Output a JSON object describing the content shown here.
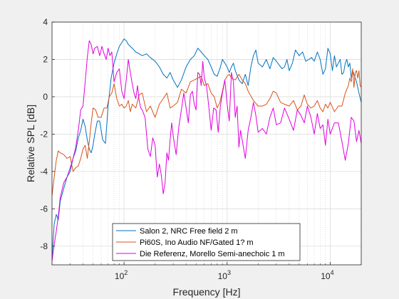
{
  "chart_data": {
    "type": "line",
    "title": "",
    "xlabel": "Frequency [Hz]",
    "ylabel": "Relative SPL [dB]",
    "xscale": "log",
    "xlim": [
      20,
      20000
    ],
    "ylim": [
      -9,
      4
    ],
    "grid": true,
    "legend_position": "bottom-center",
    "x_ticks": [
      {
        "value": 100,
        "base": "10",
        "exp": "2"
      },
      {
        "value": 1000,
        "base": "10",
        "exp": "3"
      },
      {
        "value": 10000,
        "base": "10",
        "exp": "4"
      }
    ],
    "y_ticks": [
      {
        "value": -8,
        "label": "-8"
      },
      {
        "value": -6,
        "label": "-6"
      },
      {
        "value": -4,
        "label": "-4"
      },
      {
        "value": -2,
        "label": "-2"
      },
      {
        "value": 0,
        "label": "0"
      },
      {
        "value": 2,
        "label": "2"
      },
      {
        "value": 4,
        "label": "4"
      }
    ],
    "series": [
      {
        "name": "Salon 2, NRC Free field 2 m",
        "color": "#0072BD",
        "x": [
          20,
          21,
          22,
          23,
          24,
          26,
          28,
          30,
          32,
          34,
          36,
          38,
          40,
          42,
          44,
          46,
          48,
          50,
          52,
          55,
          58,
          62,
          66,
          70,
          75,
          80,
          85,
          90,
          95,
          100,
          105,
          110,
          120,
          130,
          140,
          150,
          165,
          180,
          200,
          220,
          240,
          260,
          280,
          300,
          330,
          360,
          400,
          440,
          480,
          520,
          560,
          600,
          650,
          700,
          750,
          800,
          850,
          900,
          950,
          1000,
          1050,
          1100,
          1150,
          1200,
          1300,
          1400,
          1500,
          1600,
          1700,
          1800,
          1900,
          2000,
          2200,
          2400,
          2600,
          2800,
          3000,
          3200,
          3400,
          3600,
          3800,
          4000,
          4300,
          4600,
          5000,
          5400,
          5800,
          6200,
          6600,
          7000,
          7500,
          8000,
          8500,
          9000,
          9500,
          10000,
          10500,
          11000,
          11500,
          12000,
          12500,
          13000,
          13500,
          14000,
          14500,
          15000,
          15500,
          16000,
          16500,
          17000,
          18000,
          19000,
          20000
        ],
        "y": [
          -8.6,
          -6.8,
          -6.3,
          -6.6,
          -5.6,
          -4.9,
          -4.3,
          -4.0,
          -3.3,
          -2.9,
          -2.2,
          -1.8,
          -1.2,
          -1.6,
          -2.3,
          -2.8,
          -3.0,
          -2.6,
          -2.0,
          -1.3,
          -1.3,
          -2.3,
          -2.5,
          -0.5,
          1.0,
          1.8,
          2.3,
          2.7,
          2.9,
          3.1,
          3.0,
          2.8,
          2.6,
          2.4,
          2.3,
          2.2,
          2.3,
          2.1,
          1.9,
          1.6,
          1.2,
          1.0,
          1.3,
          0.9,
          0.5,
          0.9,
          1.6,
          2.0,
          2.2,
          2.6,
          2.4,
          2.2,
          2.0,
          1.6,
          1.2,
          1.1,
          1.5,
          2.0,
          1.8,
          1.6,
          1.3,
          1.6,
          1.8,
          1.4,
          0.9,
          0.7,
          1.2,
          0.6,
          1.6,
          2.2,
          2.5,
          1.8,
          1.6,
          2.0,
          1.5,
          2.1,
          1.9,
          1.7,
          1.5,
          1.6,
          2.0,
          1.4,
          1.8,
          2.5,
          2.2,
          2.4,
          1.9,
          2.0,
          2.1,
          1.9,
          2.4,
          2.0,
          1.2,
          1.5,
          2.6,
          2.3,
          1.4,
          2.2,
          1.6,
          1.8,
          2.0,
          1.2,
          1.3,
          1.8,
          2.0,
          1.6,
          1.8,
          1.0,
          1.4,
          1.2,
          0.8,
          0.2,
          -0.3
        ]
      },
      {
        "name": "Pi60S, Ino Audio NF/Gated 1? m",
        "color": "#D95319",
        "x": [
          20,
          21,
          22,
          23,
          24,
          26,
          28,
          30,
          32,
          34,
          36,
          38,
          40,
          42,
          44,
          46,
          48,
          50,
          53,
          56,
          60,
          64,
          68,
          72,
          76,
          80,
          85,
          90,
          95,
          100,
          105,
          110,
          115,
          120,
          130,
          140,
          150,
          165,
          180,
          200,
          220,
          240,
          260,
          280,
          300,
          330,
          360,
          400,
          440,
          480,
          520,
          560,
          600,
          650,
          700,
          750,
          800,
          850,
          900,
          950,
          1000,
          1050,
          1100,
          1200,
          1300,
          1400,
          1500,
          1600,
          1800,
          2000,
          2200,
          2400,
          2600,
          2800,
          3000,
          3300,
          3600,
          4000,
          4400,
          4800,
          5200,
          5600,
          6000,
          6500,
          7000,
          7500,
          8000,
          8500,
          9000,
          9500,
          10000,
          11000,
          12000,
          13000,
          14000,
          15000,
          15500,
          16000,
          16500,
          17000,
          17500,
          18000,
          18500,
          19000,
          19500,
          20000
        ],
        "y": [
          -5.3,
          -4.3,
          -3.4,
          -2.9,
          -3.0,
          -3.1,
          -3.3,
          -3.2,
          -4.0,
          -3.8,
          -3.7,
          -3.3,
          -2.8,
          -2.6,
          -3.3,
          -2.4,
          -1.4,
          -0.6,
          -0.7,
          -1.1,
          -1.1,
          -0.6,
          -0.6,
          0.0,
          0.2,
          0.7,
          -0.1,
          -0.5,
          -0.4,
          -0.6,
          -0.5,
          -0.2,
          -0.8,
          -0.4,
          -0.6,
          0.1,
          0.2,
          -0.8,
          -0.5,
          -1.1,
          -0.4,
          -0.1,
          0.2,
          -0.6,
          -0.5,
          -0.3,
          0.4,
          0.2,
          0.8,
          0.9,
          1.0,
          1.1,
          0.6,
          0.7,
          0.2,
          0.0,
          -0.6,
          -0.3,
          0.3,
          0.9,
          1.1,
          1.2,
          1.0,
          0.9,
          1.2,
          0.9,
          0.7,
          0.3,
          -0.2,
          -0.5,
          -0.5,
          -0.4,
          -0.1,
          0.3,
          0.2,
          -0.3,
          -0.4,
          -0.5,
          -0.2,
          -0.7,
          -0.5,
          0.1,
          -0.4,
          -0.6,
          -0.5,
          -0.2,
          -0.6,
          -0.8,
          -0.4,
          -0.6,
          -0.3,
          -0.8,
          -0.5,
          -0.5,
          0.2,
          0.6,
          1.0,
          0.8,
          1.5,
          0.5,
          1.3,
          1.4,
          1.0,
          1.4,
          0.6,
          0.5
        ]
      },
      {
        "name": "Die Referenz, Morello Semi-anechoic 1 m",
        "color": "#E000E0",
        "x": [
          20,
          21,
          22,
          23,
          24,
          26,
          28,
          30,
          32,
          34,
          36,
          38,
          40,
          42,
          44,
          46,
          48,
          50,
          52,
          55,
          58,
          61,
          64,
          67,
          70,
          73,
          76,
          80,
          85,
          90,
          95,
          100,
          105,
          110,
          115,
          120,
          125,
          130,
          135,
          140,
          145,
          150,
          160,
          170,
          180,
          190,
          200,
          210,
          220,
          230,
          240,
          250,
          260,
          270,
          280,
          290,
          300,
          320,
          340,
          360,
          380,
          400,
          420,
          440,
          460,
          480,
          500,
          520,
          540,
          560,
          580,
          600,
          630,
          660,
          700,
          740,
          780,
          820,
          860,
          900,
          950,
          1000,
          1050,
          1100,
          1150,
          1200,
          1250,
          1300,
          1350,
          1400,
          1500,
          1600,
          1700,
          1800,
          1900,
          2000,
          2200,
          2400,
          2600,
          2800,
          3000,
          3300,
          3600,
          4000,
          4400,
          4800,
          5200,
          5600,
          6000,
          6500,
          7000,
          7500,
          8000,
          8500,
          9000,
          9500,
          10000,
          11000,
          12000,
          13000,
          14000,
          15000,
          16000,
          17000,
          18000,
          19000,
          20000
        ],
        "y": [
          -8.8,
          -7.9,
          -7.2,
          -6.4,
          -5.4,
          -4.6,
          -4.3,
          -3.8,
          -3.3,
          -2.7,
          -1.8,
          -0.7,
          -0.5,
          0.8,
          2.1,
          3.0,
          2.8,
          2.3,
          2.6,
          2.7,
          2.2,
          2.7,
          2.3,
          2.0,
          2.6,
          2.2,
          2.4,
          0.8,
          1.3,
          1.5,
          0.3,
          -0.1,
          0.9,
          2.0,
          1.3,
          0.7,
          0.2,
          -0.1,
          0.6,
          -0.2,
          -0.6,
          -0.7,
          -1.1,
          -2.8,
          -3.2,
          -2.2,
          -2.6,
          -4.3,
          -3.6,
          -4.2,
          -5.2,
          -4.6,
          -3.0,
          -3.4,
          -2.3,
          -1.4,
          -2.1,
          -3.1,
          -1.6,
          -0.7,
          0.2,
          -0.6,
          -1.4,
          0.1,
          0.3,
          -0.4,
          -0.7,
          1.3,
          1.2,
          0.6,
          1.9,
          1.0,
          0.6,
          -0.4,
          -1.8,
          -0.6,
          -0.7,
          -1.9,
          -0.5,
          0.2,
          0.9,
          -0.4,
          -1.3,
          1.3,
          0.8,
          -1.1,
          -0.5,
          -2.7,
          -1.8,
          -2.3,
          -3.3,
          -1.8,
          -1.1,
          -0.3,
          -1.0,
          -1.9,
          -1.7,
          -2.0,
          -1.1,
          -0.6,
          -1.5,
          -1.4,
          -0.6,
          -1.2,
          -1.8,
          -0.7,
          -1.0,
          -1.4,
          -0.5,
          -1.1,
          -2.0,
          -0.9,
          -1.7,
          -1.5,
          -2.6,
          -1.2,
          -2.0,
          -1.4,
          -1.4,
          -2.4,
          -3.4,
          -2.5,
          -1.1,
          -1.3,
          -2.4,
          -1.8,
          -2.5
        ]
      }
    ]
  }
}
